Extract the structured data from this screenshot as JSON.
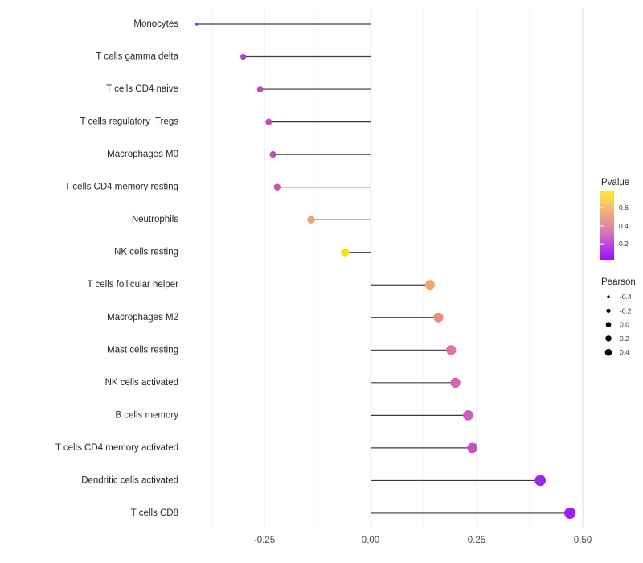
{
  "chart_data": {
    "type": "lollipop",
    "title": "",
    "xlabel": "",
    "ylabel": "",
    "xlim": [
      -0.4375,
      0.532
    ],
    "grid": "vertical-only",
    "legend_position": "right",
    "x_ticks": [
      {
        "label": "-0.25",
        "value": -0.25
      },
      {
        "label": "0.00",
        "value": 0.0
      },
      {
        "label": "0.25",
        "value": 0.25
      },
      {
        "label": "0.50",
        "value": 0.5
      }
    ],
    "minor_grid_values": [
      -0.375,
      -0.125,
      0.125,
      0.375
    ],
    "points": [
      {
        "label": "Monocytes",
        "pearson": -0.41,
        "color": "#9935CE"
      },
      {
        "label": "T cells gamma delta",
        "pearson": -0.3,
        "color": "#A944C8"
      },
      {
        "label": "T cells CD4 naive",
        "pearson": -0.26,
        "color": "#BB49C3"
      },
      {
        "label": "T cells regulatory  Tregs",
        "pearson": -0.24,
        "color": "#C24CBE"
      },
      {
        "label": "Macrophages M0",
        "pearson": -0.23,
        "color": "#C54FB9"
      },
      {
        "label": "T cells CD4 memory resting",
        "pearson": -0.22,
        "color": "#C754B3"
      },
      {
        "label": "Neutrophils",
        "pearson": -0.14,
        "color": "#ECA377"
      },
      {
        "label": "NK cells resting",
        "pearson": -0.06,
        "color": "#F2E50D"
      },
      {
        "label": "T cells follicular helper",
        "pearson": 0.14,
        "color": "#EDA76C"
      },
      {
        "label": "Macrophages M2",
        "pearson": 0.16,
        "color": "#E68D85"
      },
      {
        "label": "Mast cells resting",
        "pearson": 0.19,
        "color": "#DB75A5"
      },
      {
        "label": "NK cells activated",
        "pearson": 0.2,
        "color": "#D267AF"
      },
      {
        "label": "B cells memory",
        "pearson": 0.23,
        "color": "#CC5BBB"
      },
      {
        "label": "T cells CD4 memory activated",
        "pearson": 0.24,
        "color": "#C850C6"
      },
      {
        "label": "Dendritic cells activated",
        "pearson": 0.4,
        "color": "#9C27EF"
      },
      {
        "label": "T cells CD8",
        "pearson": 0.47,
        "color": "#A01FF2"
      }
    ],
    "legend_pvalue": {
      "title": "Pvalue",
      "ticks": [
        {
          "label": "0.6",
          "pos": 0.245
        },
        {
          "label": "0.4",
          "pos": 0.51
        },
        {
          "label": "0.2",
          "pos": 0.77
        }
      ],
      "gradient_top_to_bottom": [
        "#FBEB2B",
        "#F8CF5B",
        "#F0A87E",
        "#E28DA0",
        "#CE66C6",
        "#B337E8",
        "#A10BF8"
      ]
    },
    "legend_pearson": {
      "title": "Pearson",
      "entries": [
        {
          "label": "-0.4"
        },
        {
          "label": "-0.2"
        },
        {
          "label": "0.0"
        },
        {
          "label": "0.2"
        },
        {
          "label": "0.4"
        }
      ]
    }
  }
}
